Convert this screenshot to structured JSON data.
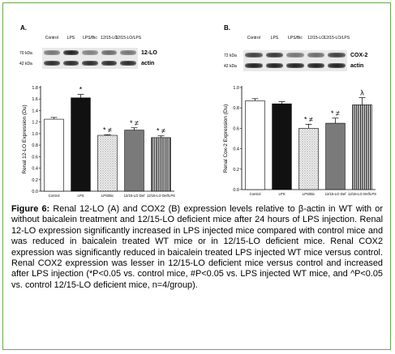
{
  "figure": {
    "caption_label": "Figure 6:",
    "caption_text": "Renal 12-LO (A) and COX2 (B) expression levels relative to β-actin in WT with or without baicalein treatment and 12/15-LO deficient mice after 24 hours of LPS injection. Renal 12-LO expression significantly increased in LPS injected mice compared with control mice and was reduced in baicalein treated WT mice or in 12/15-LO deficient mice. Renal COX2 expression was significantly reduced in baicalein treated LPS injected WT mice versus control. Renal COX2 expression was lesser in 12/15-LO deficient mice versus control and increased after LPS injection (*P<0.05 vs. control mice, #P<0.05 vs. LPS injected WT mice, and ^P<0.05 vs. control 12/15-LO deficient mice, n=4/group)."
  },
  "colors": {
    "frame_border": "#6aa84f",
    "bar_control": "#ffffff",
    "bar_lps": "#111111",
    "bar_lpsbic": "hatched-light",
    "bar_ko": "#7a7a7a",
    "bar_kolps": "vertical-stripes"
  },
  "panels": [
    {
      "letter": "A.",
      "blot": {
        "lanes": [
          "Control",
          "LPS",
          "LPS/Bic",
          "12/15-LO",
          "12/15-LO/LPS"
        ],
        "rows": [
          {
            "mw": "70 kDa",
            "protein": "12-LO",
            "intensity": [
              0.55,
              0.95,
              0.5,
              0.6,
              0.55
            ]
          },
          {
            "mw": "42 kDa",
            "protein": "actin",
            "intensity": [
              0.9,
              0.9,
              0.9,
              0.9,
              0.9
            ]
          }
        ]
      }
    },
    {
      "letter": "B.",
      "blot": {
        "lanes": [
          "Control",
          "LPS",
          "LPS/Bic",
          "12/15-LO",
          "12/15-LO/LPS"
        ],
        "rows": [
          {
            "mw": "72 kDa",
            "protein": "COX-2",
            "intensity": [
              0.8,
              0.85,
              0.55,
              0.6,
              0.8
            ]
          },
          {
            "mw": "42 kDa",
            "protein": "actin",
            "intensity": [
              0.95,
              0.95,
              0.95,
              0.95,
              0.95
            ]
          }
        ]
      }
    }
  ],
  "chart_data": [
    {
      "type": "bar",
      "title": "",
      "xlabel": "",
      "ylabel": "Renal 12-LO Expression (Du)",
      "ylim": [
        0,
        1.8
      ],
      "yticks": [
        "0.0",
        "0.2",
        "0.4",
        "0.6",
        "0.8",
        "1.0",
        "1.2",
        "1.4",
        "1.6",
        "1.8"
      ],
      "categories": [
        "Control",
        "LPS",
        "LPS/Bic",
        "12/15-LO Def",
        "12/15-LO Def/LPS"
      ],
      "values": [
        1.25,
        1.62,
        0.97,
        1.06,
        0.93
      ],
      "errors": [
        0.03,
        0.06,
        0.01,
        0.04,
        0.03
      ],
      "annotations": [
        "",
        "*",
        "* ≠",
        "* ≠",
        "* ≠"
      ],
      "grid": false
    },
    {
      "type": "bar",
      "title": "",
      "xlabel": "",
      "ylabel": "Renal Cox-2 Expression (Du)",
      "ylim": [
        0,
        1.0
      ],
      "yticks": [
        "0.0",
        "0.2",
        "0.4",
        "0.6",
        "0.8",
        "1.0"
      ],
      "categories": [
        "Control",
        "LPS",
        "LPS/Bic",
        "12/15-LO Def",
        "12/15-LO Def/LPS"
      ],
      "values": [
        0.87,
        0.84,
        0.6,
        0.65,
        0.83
      ],
      "errors": [
        0.02,
        0.02,
        0.04,
        0.05,
        0.07
      ],
      "annotations": [
        "",
        "",
        "* ≠",
        "* ≠",
        "λ"
      ],
      "grid": false
    }
  ]
}
